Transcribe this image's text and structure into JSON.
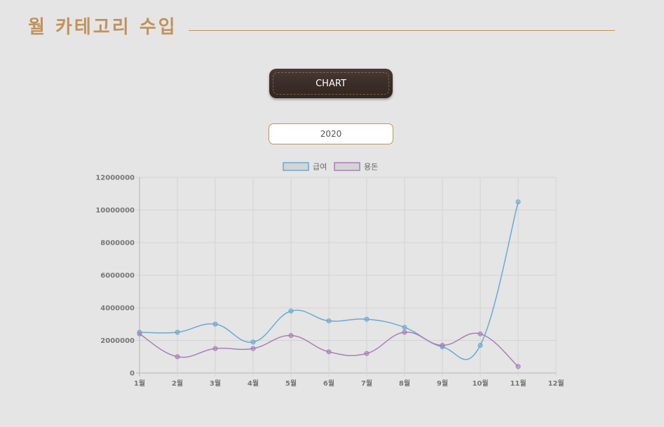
{
  "header": {
    "title": "월 카테고리 수입"
  },
  "controls": {
    "chart_button_label": "CHART",
    "year_value": "2020"
  },
  "colors": {
    "title": "#c0935c",
    "series_salary": "#6ba9d3",
    "series_allowance": "#a97fb8"
  },
  "chart_data": {
    "type": "line",
    "categories": [
      "1월",
      "2월",
      "3월",
      "4월",
      "5월",
      "6월",
      "7월",
      "8월",
      "9월",
      "10월",
      "11월",
      "12월"
    ],
    "ylim": [
      0,
      12000000
    ],
    "yticks": [
      "0",
      "2000000",
      "4000000",
      "6000000",
      "8000000",
      "10000000",
      "12000000"
    ],
    "grid": true,
    "legend_position": "top",
    "series": [
      {
        "name": "급여",
        "color": "#6ba9d3",
        "values": [
          2500000,
          2500000,
          3000000,
          1900000,
          3800000,
          3200000,
          3300000,
          2800000,
          1600000,
          1700000,
          10500000,
          null
        ]
      },
      {
        "name": "용돈",
        "color": "#a97fb8",
        "values": [
          2400000,
          1000000,
          1500000,
          1500000,
          2300000,
          1300000,
          1200000,
          2500000,
          1700000,
          2400000,
          400000,
          null
        ]
      }
    ]
  }
}
